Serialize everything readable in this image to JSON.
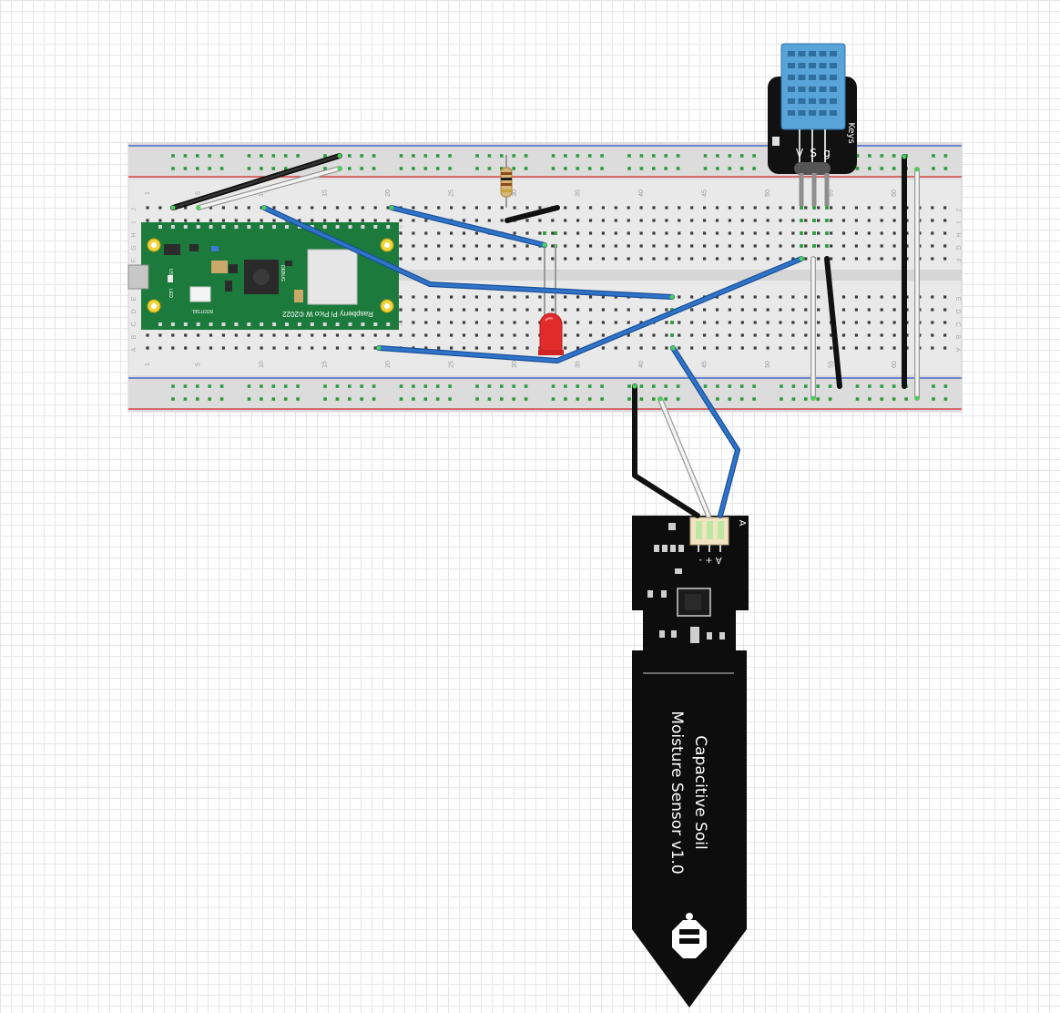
{
  "breadboard": {
    "column_numbers": [
      "1",
      "5",
      "10",
      "15",
      "20",
      "25",
      "30",
      "35",
      "40",
      "45",
      "50",
      "55",
      "60"
    ],
    "row_letters_top": [
      "J",
      "I",
      "H",
      "G",
      "F"
    ],
    "row_letters_bottom": [
      "E",
      "D",
      "C",
      "B",
      "A"
    ]
  },
  "pico": {
    "name": "Raspberry Pi Pico W ©2022",
    "bootsel": "BOOTSEL",
    "usb": "USB",
    "led": "LED",
    "debug": "DEBUG"
  },
  "dht": {
    "pin_v": "V",
    "pin_s": "S",
    "pin_g": "g",
    "brand": "Keys"
  },
  "soil_sensor": {
    "title_line1": "Capacitive Soil",
    "title_line2": "Moisture Sensor v1.0",
    "pin_labels": "A + -",
    "header_mark": "A"
  },
  "colors": {
    "wire_blue": "#2f74c9",
    "wire_black": "#1c1c1c",
    "wire_white": "#e8e8e8",
    "pico_green": "#1c7a3c",
    "dht_blue": "#58a3d8",
    "led_red": "#e22b2b",
    "rail_red": "#d42424",
    "rail_blue": "#2a4fc6",
    "hole_green": "#2c9a3c"
  }
}
